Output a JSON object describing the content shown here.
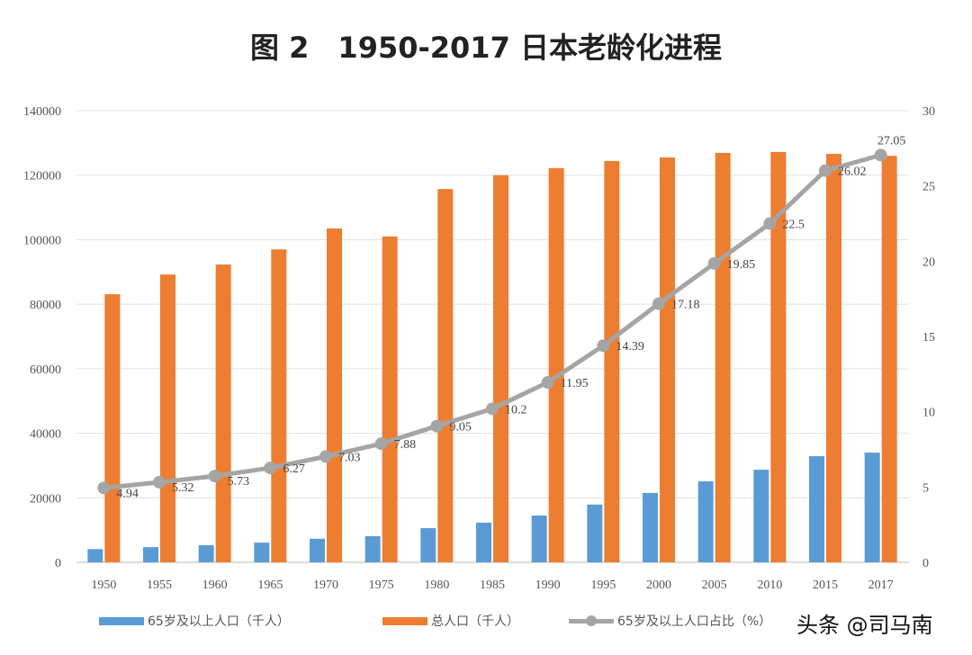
{
  "chart_data": {
    "type": "bar+line",
    "title": "图 2　1950-2017 日本老龄化进程",
    "categories": [
      "1950",
      "1955",
      "1960",
      "1965",
      "1970",
      "1975",
      "1980",
      "1985",
      "1990",
      "1995",
      "2000",
      "2005",
      "2010",
      "2015",
      "2017"
    ],
    "series": [
      {
        "name": "65岁及以上人口（千人）",
        "type": "bar",
        "axis": "left",
        "color": "#5b9bd5",
        "values": [
          4100,
          4700,
          5300,
          6100,
          7300,
          8100,
          10600,
          12300,
          14500,
          17900,
          21500,
          25100,
          28700,
          32900,
          34000
        ]
      },
      {
        "name": "总人口（千人）",
        "type": "bar",
        "axis": "left",
        "color": "#ed7d31",
        "values": [
          83100,
          89200,
          92300,
          97000,
          103500,
          101000,
          115700,
          120000,
          122200,
          124400,
          125500,
          126900,
          127200,
          126600,
          126000
        ]
      },
      {
        "name": "65岁及以上人口占比（%）",
        "type": "line",
        "axis": "right",
        "color": "#a5a5a5",
        "values": [
          4.94,
          5.32,
          5.73,
          6.27,
          7.03,
          7.88,
          9.05,
          10.2,
          11.95,
          14.39,
          17.18,
          19.85,
          22.5,
          26.02,
          27.05
        ],
        "labels": [
          "4.94",
          "5.32",
          "5.73",
          "6.27",
          "7.03",
          "7.88",
          "9.05",
          "10.2",
          "11.95",
          "14.39",
          "17.18",
          "19.85",
          "22.5",
          "26.02",
          "27.05"
        ]
      }
    ],
    "ylim_left": [
      0,
      140000
    ],
    "yticks_left": [
      "0",
      "20000",
      "40000",
      "60000",
      "80000",
      "100000",
      "120000",
      "140000"
    ],
    "ylim_right": [
      0,
      30
    ],
    "yticks_right": [
      "0",
      "5",
      "10",
      "15",
      "20",
      "25",
      "30"
    ],
    "grid": true,
    "legend_position": "bottom"
  },
  "legend": [
    "65岁及以上人口（千人）",
    "总人口（千人）",
    "65岁及以上人口占比（%）"
  ],
  "watermark": "头条 @司马南"
}
